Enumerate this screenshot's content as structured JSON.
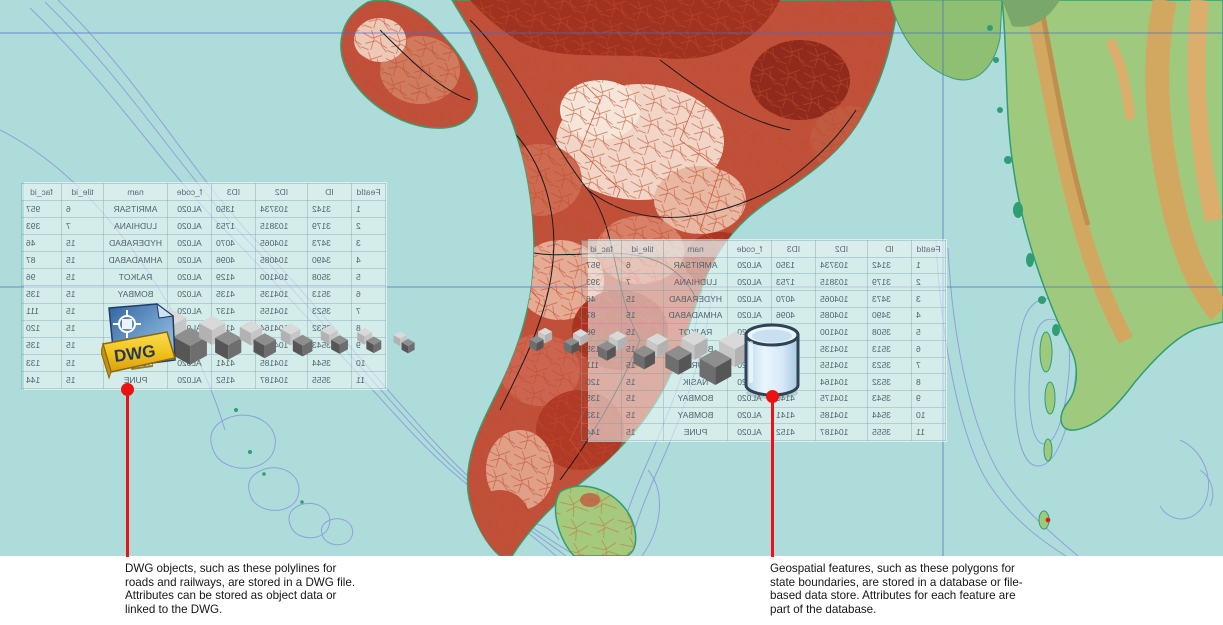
{
  "figure": {
    "title": "DWG objects versus geospatial features stored with attribute tables over a map of India"
  },
  "annotations": {
    "left": "DWG objects, such as these polylines for\nroads and railways, are stored in a DWG file.\nAttributes can be stored as object data or\nlinked to the DWG.",
    "right": "Geospatial features, such as these polygons for\nstate boundaries, are stored in a database or file-\nbased data store. Attributes for each feature are\npart of the database."
  },
  "icons": {
    "dwg_file": {
      "name": "dwg-file-icon",
      "label": "DWG"
    },
    "database": {
      "name": "database-icon"
    },
    "transfer_trail": {
      "name": "cube-pair-icon",
      "pair_count": 13
    }
  },
  "attribute_table": {
    "mirrored": true,
    "columns": [
      "FeatId",
      "ID",
      "ID2",
      "ID3",
      "f_code",
      "nam",
      "tile_id",
      "fac_id"
    ],
    "rows": [
      [
        "1",
        "3142",
        "103734",
        "1350",
        "AL020",
        "AMRITSAR",
        "6",
        "957"
      ],
      [
        "2",
        "3179",
        "103815",
        "1753",
        "AL020",
        "LUDHIANA",
        "7",
        "393"
      ],
      [
        "3",
        "3473",
        "104065",
        "4070",
        "AL020",
        "HYDERABAD",
        "15",
        "46"
      ],
      [
        "4",
        "3490",
        "104085",
        "4096",
        "AL020",
        "AHMADABAD",
        "15",
        "87"
      ],
      [
        "5",
        "3508",
        "104100",
        "4129",
        "AL020",
        "RAJKOT",
        "15",
        "96"
      ],
      [
        "6",
        "3513",
        "104135",
        "4135",
        "AL020",
        "BOMBAY",
        "15",
        "135"
      ],
      [
        "7",
        "3523",
        "104155",
        "4137",
        "AL020",
        "SURAT",
        "15",
        "111"
      ],
      [
        "8",
        "3532",
        "104164",
        "4138",
        "AL020",
        "NASIK",
        "15",
        "120"
      ],
      [
        "9",
        "3543",
        "104175",
        "4140",
        "AL020",
        "BOMBAY",
        "15",
        "135"
      ],
      [
        "10",
        "3544",
        "104185",
        "4141",
        "AL020",
        "BOMBAY",
        "15",
        "133"
      ],
      [
        "11",
        "3555",
        "104187",
        "4152",
        "AL020",
        "PUNE",
        "15",
        "144"
      ]
    ]
  },
  "colors": {
    "ocean": "#aedcda",
    "bathymetry_contour": "#8a9cd8",
    "graticule": "#4a6ac8",
    "india_base": "#c0503a",
    "district_dark": "#a23220",
    "district_light": "#f1d6c8",
    "lowland_green": "#9fca7e",
    "mountain_tan": "#d8a55e",
    "leader_red": "#ea1212",
    "dwg_banner_yellow": "#f2c41e",
    "table_text": "#51626f"
  }
}
